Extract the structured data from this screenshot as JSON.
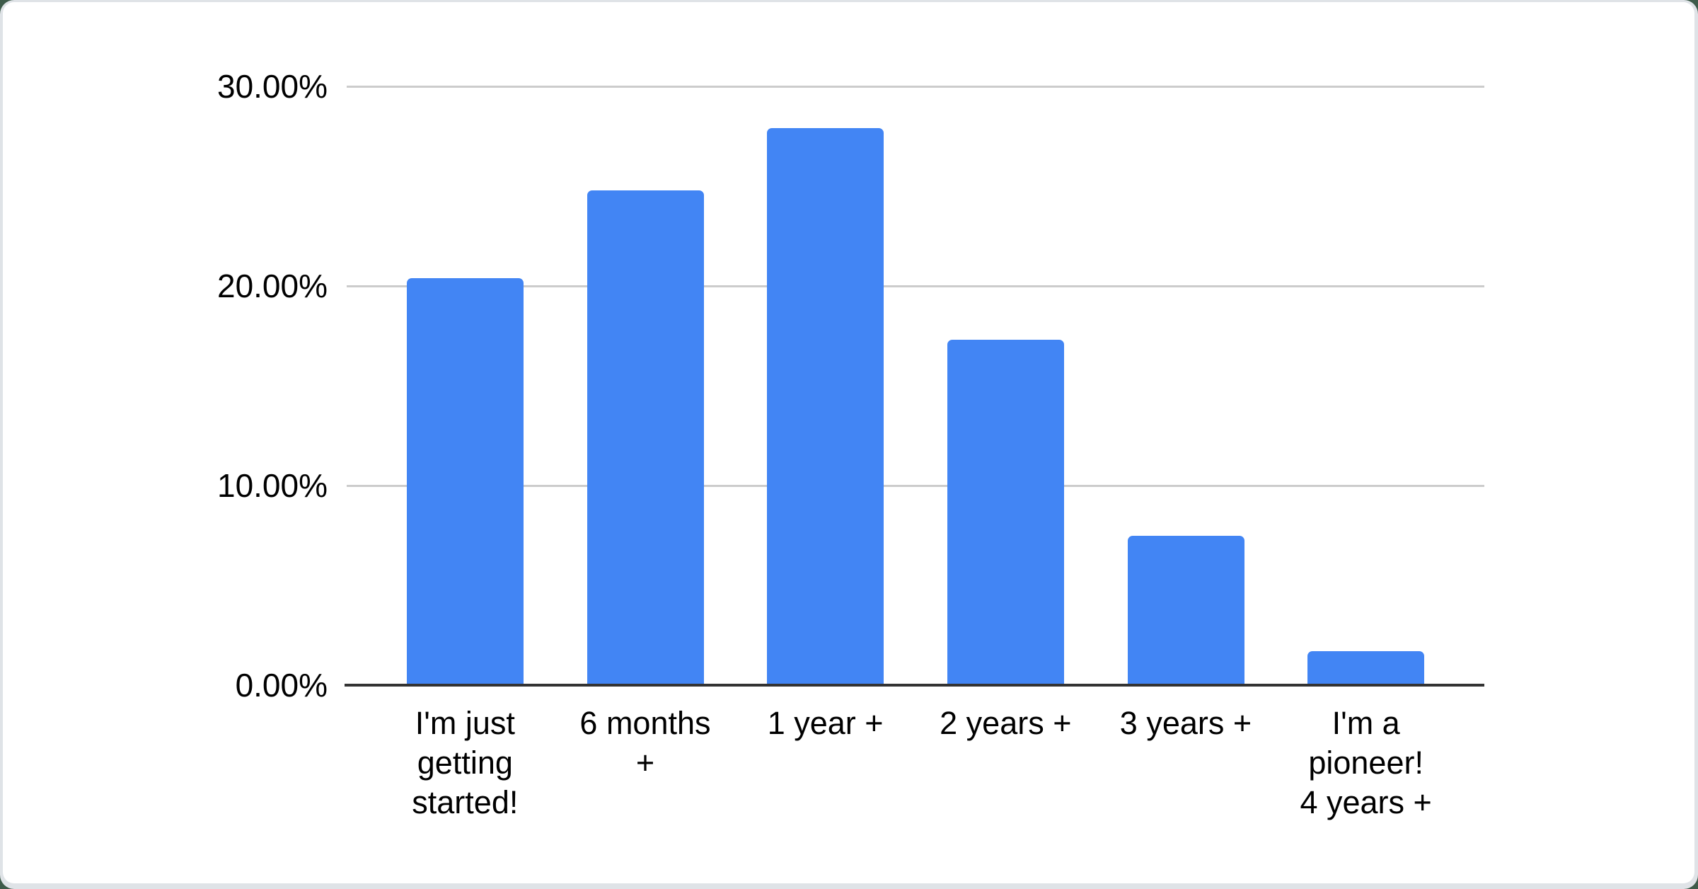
{
  "window": {
    "title": "Survey results bar chart"
  },
  "colors": {
    "bar": "#4285f4",
    "gridline": "#cccccc",
    "axis": "#333333",
    "text": "#000000",
    "card_bg": "#ffffff",
    "frame_bg": "#dfe3e7",
    "page_bg": "#3e5b4a"
  },
  "chart_data": {
    "type": "bar",
    "title": "",
    "xlabel": "",
    "ylabel": "",
    "legend": "none",
    "grid": true,
    "unit": "%",
    "categories": [
      "I'm just getting started!",
      "6 months +",
      "1 year +",
      "2 years +",
      "3 years +",
      "I'm a pioneer! 4 years +"
    ],
    "category_lines": [
      [
        "I'm just",
        "getting",
        "started!"
      ],
      [
        "6 months",
        "+"
      ],
      [
        "1 year +"
      ],
      [
        "2 years +"
      ],
      [
        "3 years +"
      ],
      [
        "I'm a",
        "pioneer!",
        "4 years +"
      ]
    ],
    "values": [
      20.4,
      24.8,
      27.9,
      17.3,
      7.5,
      1.7
    ],
    "y_ticks": [
      "0.00%",
      "10.00%",
      "20.00%",
      "30.00%"
    ],
    "y_tick_values": [
      0,
      10,
      20,
      30
    ],
    "ylim": [
      0,
      30
    ]
  }
}
